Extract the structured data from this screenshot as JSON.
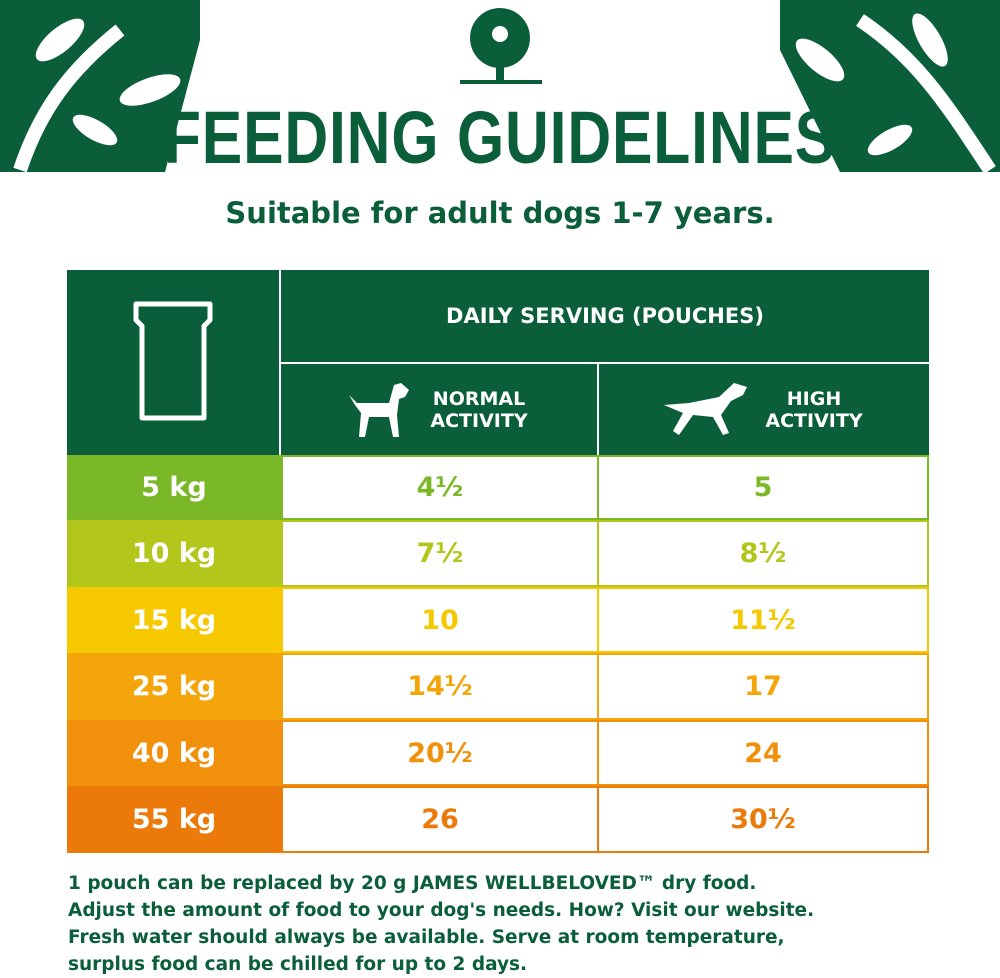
{
  "header": {
    "title": "FEEDING GUIDELINES",
    "subtitle": "Suitable for adult dogs 1-7 years."
  },
  "table": {
    "header": "DAILY SERVING (POUCHES)",
    "columns": [
      "NORMAL ACTIVITY",
      "HIGH ACTIVITY"
    ],
    "rows": [
      [
        "5 kg",
        "4½",
        "5"
      ],
      [
        "10 kg",
        "7½",
        "8½"
      ],
      [
        "15 kg",
        "10",
        "11½"
      ],
      [
        "25 kg",
        "14½",
        "17"
      ],
      [
        "40 kg",
        "20½",
        "24"
      ],
      [
        "55 kg",
        "26",
        "30½"
      ]
    ]
  },
  "footer": {
    "lines": [
      "1 pouch can be replaced by 20 g JAMES WELLBELOVED™ dry food.",
      "Adjust the amount of food to your dog's needs. How? Visit our website.",
      "Fresh water should always be available. Serve at room temperature,",
      "surplus food can be chilled for up to 2 days."
    ]
  }
}
